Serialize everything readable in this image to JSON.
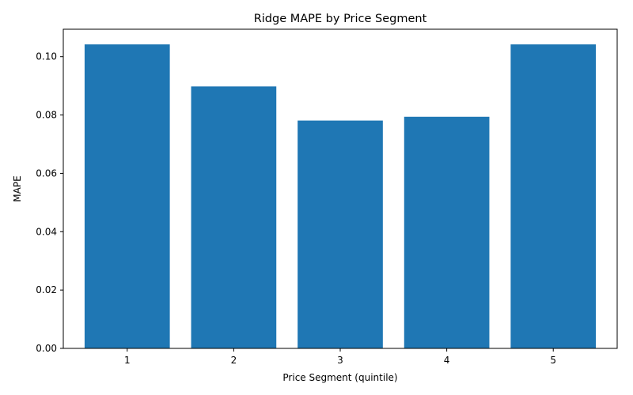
{
  "chart_data": {
    "type": "bar",
    "title": "Ridge MAPE by Price Segment",
    "xlabel": "Price Segment (quintile)",
    "ylabel": "MAPE",
    "categories": [
      "1",
      "2",
      "3",
      "4",
      "5"
    ],
    "values": [
      0.1042,
      0.0898,
      0.0781,
      0.0794,
      0.1042
    ],
    "ylim": [
      0,
      0.1094
    ],
    "yticks": [
      0.0,
      0.02,
      0.04,
      0.06,
      0.08,
      0.1
    ],
    "ytick_labels": [
      "0.00",
      "0.02",
      "0.04",
      "0.06",
      "0.08",
      "0.10"
    ],
    "bar_color": "#1f77b4",
    "grid": false,
    "legend": "none"
  }
}
